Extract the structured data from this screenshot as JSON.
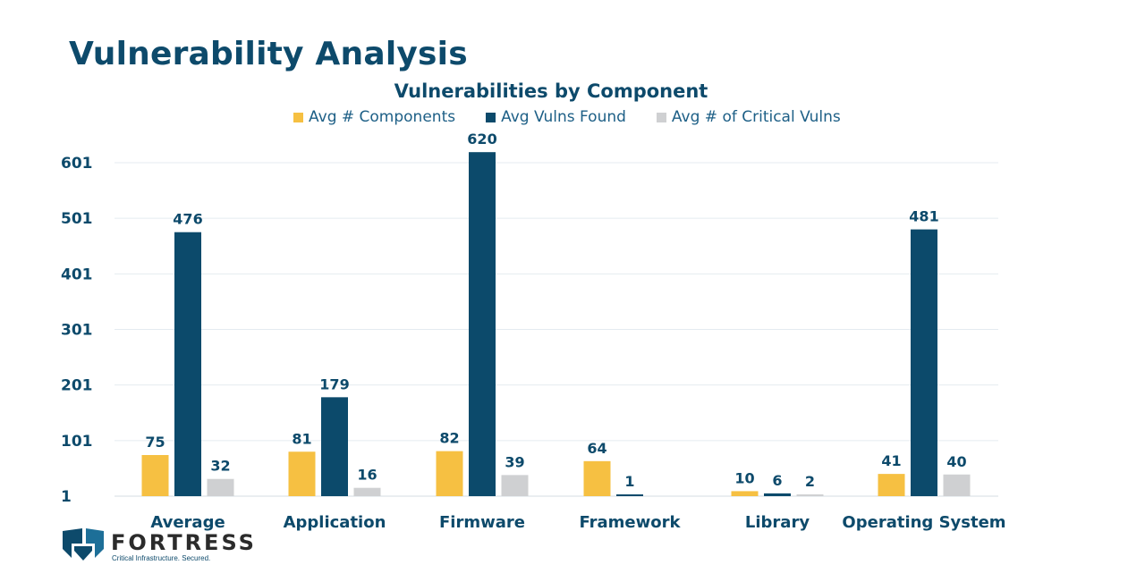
{
  "page": {
    "title": "Vulnerability Analysis"
  },
  "chart_data": {
    "type": "bar",
    "title": "Vulnerabilities by Component",
    "xlabel": "",
    "ylabel": "",
    "categories": [
      "Average",
      "Application",
      "Firmware",
      "Framework",
      "Library",
      "Operating System"
    ],
    "series": [
      {
        "name": "Avg # Components",
        "color": "#f6c042",
        "values": [
          75,
          81,
          82,
          64,
          10,
          41
        ]
      },
      {
        "name": "Avg Vulns Found",
        "color": "#0c4a6b",
        "values": [
          476,
          179,
          620,
          1,
          6,
          481
        ]
      },
      {
        "name": "Avg # of Critical Vulns",
        "color": "#cfd0d2",
        "values": [
          32,
          16,
          39,
          null,
          2,
          40
        ]
      }
    ],
    "yticks": [
      1,
      101,
      201,
      301,
      401,
      501,
      601
    ],
    "ylim": [
      1,
      601
    ],
    "grid": true,
    "legend_position": "top"
  },
  "logo": {
    "name": "FORTRESS",
    "tagline": "Critical Infrastructure. Secured."
  }
}
